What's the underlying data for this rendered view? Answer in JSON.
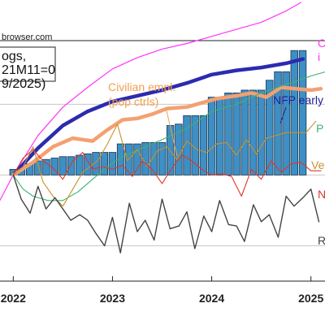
{
  "page": {
    "header_text": "browser.com",
    "legend_lines": [
      "ogs,",
      "21M11=0",
      "9/2025)"
    ]
  },
  "chart_data": {
    "type": "line",
    "x_unit": "year",
    "xlim": [
      2021.85,
      2025.15
    ],
    "ylim": [
      -0.075,
      0.095
    ],
    "x_ticks": [
      2022,
      2023,
      2024,
      2025
    ],
    "x_tick_labels": [
      "2022",
      "2023",
      "2024",
      "2025"
    ],
    "y_gridlines": [
      -0.05,
      0.0,
      0.05
    ],
    "annotations": [
      {
        "key": "civilian",
        "lines": [
          "Civilian empl.",
          "(pop ctrls)"
        ],
        "color": "#f0a050"
      },
      {
        "key": "nfp_early",
        "lines": [
          "NFP early"
        ],
        "color": "#1f1f9a"
      },
      {
        "key": "p_label",
        "lines": [
          "P"
        ],
        "color": "#3cb371"
      },
      {
        "key": "ve_label",
        "lines": [
          "Ve"
        ],
        "color": "#c8922a"
      },
      {
        "key": "n_label",
        "lines": [
          "N"
        ],
        "color": "#e0352b"
      },
      {
        "key": "r_label",
        "lines": [
          "R"
        ],
        "color": "#444444"
      },
      {
        "key": "c_label",
        "lines": [
          "C"
        ],
        "color": "#ff33ff"
      },
      {
        "key": "i_label",
        "lines": [
          "i"
        ],
        "color": "#ff33ff"
      }
    ],
    "bars": {
      "name": "",
      "color": "#3d8fc4",
      "x": [
        2022.0,
        2022.083,
        2022.167,
        2022.25,
        2022.333,
        2022.417,
        2022.5,
        2022.583,
        2022.667,
        2022.75,
        2022.833,
        2022.917,
        2023.0,
        2023.083,
        2023.167,
        2023.25,
        2023.333,
        2023.417,
        2023.5,
        2023.583,
        2023.667,
        2023.75,
        2023.833,
        2023.917,
        2024.0,
        2024.083,
        2024.167,
        2024.25,
        2024.333,
        2024.417,
        2024.5,
        2024.583,
        2024.667,
        2024.75,
        2024.833,
        2024.917
      ],
      "values": [
        0.004,
        0.006,
        0.008,
        0.01,
        0.011,
        0.012,
        0.013,
        0.013,
        0.014,
        0.015,
        0.016,
        0.016,
        0.016,
        0.022,
        0.022,
        0.022,
        0.023,
        0.023,
        0.023,
        0.035,
        0.036,
        0.042,
        0.042,
        0.042,
        0.055,
        0.055,
        0.058,
        0.058,
        0.06,
        0.06,
        0.06,
        0.067,
        0.073,
        0.073,
        0.088,
        0.088
      ]
    },
    "series": [
      {
        "key": "c_line",
        "color": "#ff33ff",
        "width": 1.2,
        "x": [
          2021.85,
          2022.0,
          2022.25,
          2022.5,
          2022.75,
          2023.0,
          2023.25,
          2023.5,
          2023.75,
          2024.0,
          2024.25,
          2024.5,
          2024.75,
          2024.9
        ],
        "y": [
          -0.02,
          0.0,
          0.028,
          0.048,
          0.062,
          0.075,
          0.083,
          0.089,
          0.093,
          0.098,
          0.103,
          0.108,
          0.116,
          0.122
        ]
      },
      {
        "key": "nfp",
        "color": "#2b2bb0",
        "width": 4.5,
        "x": [
          2022.0,
          2022.25,
          2022.5,
          2022.75,
          2023.0,
          2023.25,
          2023.5,
          2023.75,
          2024.0,
          2024.25,
          2024.5,
          2024.75,
          2024.92
        ],
        "y": [
          0.0,
          0.019,
          0.035,
          0.045,
          0.052,
          0.056,
          0.06,
          0.065,
          0.071,
          0.074,
          0.076,
          0.079,
          0.082
        ]
      },
      {
        "key": "civilian",
        "color": "#f4a070",
        "width": 4.5,
        "x": [
          2022.0,
          2022.2,
          2022.4,
          2022.6,
          2022.8,
          2022.95,
          2023.1,
          2023.25,
          2023.4,
          2023.55,
          2023.75,
          2023.9,
          2024.05,
          2024.25,
          2024.4,
          2024.55,
          2024.7,
          2024.85,
          2025.0,
          2025.1
        ],
        "y": [
          0.0,
          0.009,
          0.02,
          0.026,
          0.024,
          0.032,
          0.039,
          0.04,
          0.043,
          0.047,
          0.048,
          0.051,
          0.054,
          0.056,
          0.058,
          0.055,
          0.062,
          0.061,
          0.06,
          0.061
        ]
      },
      {
        "key": "p_line",
        "color": "#3cb371",
        "width": 1.1,
        "x": [
          2022.0,
          2022.1,
          2022.2,
          2022.35,
          2022.5,
          2022.65,
          2022.8,
          2022.95,
          2023.1,
          2023.3,
          2023.5,
          2023.75,
          2024.0,
          2024.25,
          2024.5,
          2024.75,
          2025.0,
          2025.15
        ],
        "y": [
          0.0,
          -0.01,
          -0.015,
          -0.018,
          -0.018,
          -0.012,
          -0.003,
          0.006,
          0.013,
          0.019,
          0.025,
          0.033,
          0.045,
          0.05,
          0.058,
          0.064,
          0.07,
          0.073
        ]
      },
      {
        "key": "ve_line",
        "color": "#c8922a",
        "width": 1.1,
        "x": [
          2022.0,
          2022.1,
          2022.2,
          2022.3,
          2022.4,
          2022.5,
          2022.6,
          2022.7,
          2022.85,
          2022.95,
          2023.05,
          2023.15,
          2023.25,
          2023.35,
          2023.45,
          2023.55,
          2023.65,
          2023.75,
          2023.85,
          2023.95,
          2024.05,
          2024.15,
          2024.25,
          2024.35,
          2024.45,
          2024.55,
          2024.65,
          2024.75,
          2024.85,
          2024.95,
          2025.05
        ],
        "y": [
          0.0,
          0.006,
          0.02,
          -0.005,
          -0.015,
          -0.022,
          -0.01,
          0.002,
          0.01,
          0.022,
          0.036,
          0.01,
          0.018,
          0.006,
          0.017,
          0.02,
          0.011,
          0.024,
          0.018,
          0.016,
          0.022,
          0.023,
          0.014,
          0.025,
          0.015,
          0.026,
          0.028,
          0.03,
          0.03,
          0.03,
          0.038
        ]
      },
      {
        "key": "n_line",
        "color": "#e0352b",
        "width": 1.1,
        "x": [
          2022.0,
          2022.1,
          2022.2,
          2022.3,
          2022.4,
          2022.5,
          2022.6,
          2022.7,
          2022.8,
          2022.9,
          2023.0,
          2023.1,
          2023.2,
          2023.3,
          2023.4,
          2023.5,
          2023.6,
          2023.7,
          2023.8,
          2023.9,
          2024.0,
          2024.1,
          2024.2,
          2024.3,
          2024.4,
          2024.5,
          2024.6,
          2024.7,
          2024.8,
          2024.9,
          2025.0,
          2025.1
        ],
        "y": [
          0.0,
          0.012,
          0.018,
          0.01,
          0.005,
          -0.003,
          0.01,
          0.016,
          0.004,
          0.006,
          0.004,
          0.007,
          -0.001,
          0.01,
          0.004,
          -0.006,
          0.005,
          0.014,
          0.01,
          0.004,
          0.0,
          0.001,
          -0.001,
          -0.015,
          0.004,
          -0.003,
          0.01,
          0.002,
          0.008,
          0.009,
          0.003,
          0.003
        ]
      },
      {
        "key": "r_line",
        "color": "#444444",
        "width": 1.4,
        "x": [
          2022.0,
          2022.08,
          2022.17,
          2022.25,
          2022.33,
          2022.42,
          2022.5,
          2022.58,
          2022.67,
          2022.75,
          2022.83,
          2022.92,
          2023.0,
          2023.08,
          2023.17,
          2023.25,
          2023.33,
          2023.42,
          2023.5,
          2023.58,
          2023.67,
          2023.75,
          2023.83,
          2023.92,
          2024.0,
          2024.08,
          2024.17,
          2024.25,
          2024.33,
          2024.42,
          2024.5,
          2024.58,
          2024.67,
          2024.75,
          2024.83,
          2024.92,
          2025.0,
          2025.08
        ],
        "y": [
          0.0,
          -0.017,
          -0.027,
          -0.008,
          -0.024,
          -0.016,
          -0.024,
          -0.032,
          -0.028,
          -0.032,
          -0.041,
          -0.05,
          -0.03,
          -0.055,
          -0.02,
          -0.04,
          -0.032,
          -0.046,
          -0.017,
          -0.038,
          -0.036,
          -0.026,
          -0.052,
          -0.029,
          -0.04,
          -0.018,
          -0.035,
          -0.036,
          -0.047,
          -0.021,
          -0.033,
          -0.028,
          -0.044,
          -0.015,
          -0.022,
          -0.016,
          -0.01,
          -0.033
        ]
      }
    ]
  }
}
